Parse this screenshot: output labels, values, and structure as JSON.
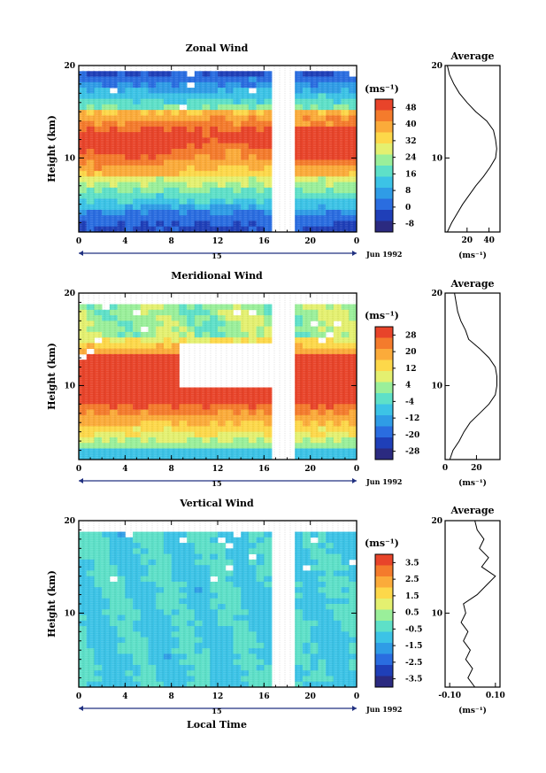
{
  "figure": {
    "xlabel_bottom": "Local Time",
    "date_label": "Jun 1992",
    "day_label": "15",
    "unit_label": "(ms⁻¹)",
    "average_title": "Average"
  },
  "colors": {
    "palette": [
      "#2b2a80",
      "#1f3fb8",
      "#2a6de0",
      "#2f9ce6",
      "#3cc3e6",
      "#5ee0c8",
      "#9aef9a",
      "#e4f070",
      "#fdd84a",
      "#fbab3a",
      "#f47b2c",
      "#e8442a"
    ],
    "zonal_palette": [
      "#2b2a80",
      "#1f3fb8",
      "#2a6de0",
      "#2f9ce6",
      "#3cc3e6",
      "#5ee0c8",
      "#9aef9a",
      "#e4f070",
      "#fdd84a",
      "#fbab3a",
      "#f47b2c",
      "#e8442a"
    ]
  },
  "chart_data": [
    {
      "type": "heatmap",
      "title": "Zonal Wind",
      "xlabel": "",
      "ylabel": "Height (km)",
      "xlim": [
        0,
        24
      ],
      "ylim": [
        2,
        20
      ],
      "x_ticks": [
        "0",
        "4",
        "8",
        "12",
        "16",
        "20",
        "0"
      ],
      "y_ticks": [
        "20",
        "10"
      ],
      "colorbar": {
        "unit": "(ms⁻¹)",
        "ticks": [
          "48",
          "40",
          "32",
          "24",
          "16",
          "8",
          "0",
          "-8"
        ],
        "min": -12,
        "max": 52
      },
      "profile": {
        "title": "Average",
        "xlim": [
          0,
          50
        ],
        "x_ticks": [
          "20",
          "40"
        ],
        "xlabel": "(ms⁻¹)",
        "height": [
          2,
          3,
          4,
          5,
          6,
          7,
          8,
          9,
          10,
          11,
          12,
          13,
          14,
          15,
          16,
          17,
          18,
          19,
          20
        ],
        "value": [
          2,
          6,
          11,
          16,
          22,
          28,
          35,
          41,
          46,
          47,
          46,
          44,
          38,
          28,
          20,
          13,
          8,
          4,
          2
        ]
      }
    },
    {
      "type": "heatmap",
      "title": "Meridional Wind",
      "xlabel": "",
      "ylabel": "Height (km)",
      "xlim": [
        0,
        24
      ],
      "ylim": [
        2,
        20
      ],
      "x_ticks": [
        "0",
        "4",
        "8",
        "12",
        "16",
        "20",
        "0"
      ],
      "y_ticks": [
        "20",
        "10"
      ],
      "colorbar": {
        "unit": "(ms⁻¹)",
        "ticks": [
          "28",
          "20",
          "12",
          "4",
          "-4",
          "-12",
          "-20",
          "-28"
        ],
        "min": -32,
        "max": 32
      },
      "profile": {
        "title": "Average",
        "xlim": [
          0,
          35
        ],
        "x_ticks": [
          "0",
          "20"
        ],
        "xlabel": "(ms⁻¹)",
        "height": [
          2,
          3,
          4,
          5,
          6,
          7,
          8,
          9,
          10,
          11,
          12,
          13,
          14,
          15,
          16,
          17,
          18,
          19,
          20
        ],
        "value": [
          3,
          5,
          9,
          12,
          16,
          22,
          28,
          32,
          33,
          33,
          32,
          28,
          22,
          15,
          13,
          10,
          8,
          7,
          6
        ]
      }
    },
    {
      "type": "heatmap",
      "title": "Vertical Wind",
      "xlabel": "Local Time",
      "ylabel": "Height (km)",
      "xlim": [
        0,
        24
      ],
      "ylim": [
        2,
        20
      ],
      "x_ticks": [
        "0",
        "4",
        "8",
        "12",
        "16",
        "20",
        "0"
      ],
      "y_ticks": [
        "20",
        "10"
      ],
      "colorbar": {
        "unit": "(ms⁻¹)",
        "ticks": [
          "3.5",
          "2.5",
          "1.5",
          "0.5",
          "-0.5",
          "-1.5",
          "-2.5",
          "-3.5"
        ],
        "min": -4,
        "max": 4
      },
      "profile": {
        "title": "Average",
        "xlim": [
          -0.12,
          0.12
        ],
        "x_ticks": [
          "-0.10",
          "0.10"
        ],
        "xlabel": "(ms⁻¹)",
        "height": [
          2,
          3,
          4,
          5,
          6,
          7,
          8,
          9,
          10,
          11,
          12,
          13,
          14,
          15,
          16,
          17,
          18,
          19,
          20
        ],
        "value": [
          0.01,
          -0.02,
          0.0,
          -0.03,
          -0.01,
          -0.04,
          -0.02,
          -0.05,
          -0.03,
          -0.04,
          0.02,
          0.06,
          0.1,
          0.04,
          0.07,
          0.03,
          0.05,
          0.02,
          0.01
        ]
      }
    }
  ]
}
